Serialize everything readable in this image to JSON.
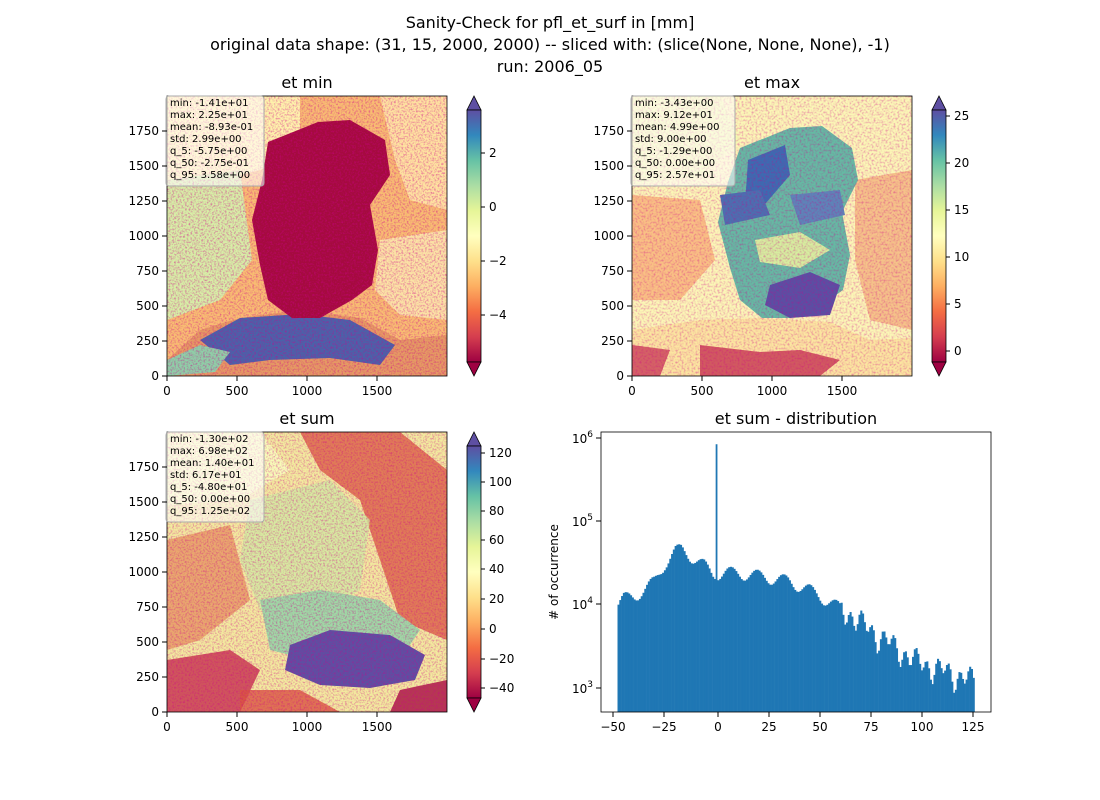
{
  "figure": {
    "title_lines": [
      "Sanity-Check for pfl_et_surf in [mm]",
      "original data shape: (31, 15, 2000, 2000) -- sliced with: (slice(None, None, None), -1)",
      "run: 2006_05"
    ]
  },
  "panels": [
    {
      "key": "etmin",
      "title": "et min",
      "stats": [
        "min: -1.41e+01",
        "max: 2.25e+01",
        "mean: -8.93e-01",
        "std: 2.99e+00",
        "q_5: -5.75e+00",
        "q_50: -2.75e-01",
        "q_95: 3.58e+00"
      ],
      "xticks": [
        "0",
        "500",
        "1000",
        "1500"
      ],
      "yticks": [
        "0",
        "250",
        "500",
        "750",
        "1000",
        "1250",
        "1500",
        "1750"
      ],
      "colorbar": {
        "ticks": [
          "2",
          "0",
          "−2",
          "−4"
        ],
        "min": -5.75,
        "max": 3.58
      }
    },
    {
      "key": "etmax",
      "title": "et max",
      "stats": [
        "min: -3.43e+00",
        "max: 9.12e+01",
        "mean: 4.99e+00",
        "std: 9.00e+00",
        "q_5: -1.29e+00",
        "q_50: 0.00e+00",
        "q_95: 2.57e+01"
      ],
      "xticks": [
        "0",
        "500",
        "1000",
        "1500"
      ],
      "yticks": [
        "0",
        "250",
        "500",
        "750",
        "1000",
        "1250",
        "1500",
        "1750"
      ],
      "colorbar": {
        "ticks": [
          "25",
          "20",
          "15",
          "10",
          "5",
          "0"
        ],
        "min": -1.29,
        "max": 25.7
      }
    },
    {
      "key": "etsum",
      "title": "et sum",
      "stats": [
        "min: -1.30e+02",
        "max: 6.98e+02",
        "mean: 1.40e+01",
        "std: 6.17e+01",
        "q_5: -4.80e+01",
        "q_50: 0.00e+00",
        "q_95: 1.25e+02"
      ],
      "xticks": [
        "0",
        "500",
        "1000",
        "1500"
      ],
      "yticks": [
        "0",
        "250",
        "500",
        "750",
        "1000",
        "1250",
        "1500",
        "1750"
      ],
      "colorbar": {
        "ticks": [
          "120",
          "100",
          "80",
          "60",
          "40",
          "20",
          "0",
          "−20",
          "−40"
        ],
        "min": -48,
        "max": 125
      }
    }
  ],
  "colormap": "Spectral",
  "colors": {
    "hist_bar": "#1f77b4"
  },
  "chart_data": {
    "type": "bar",
    "title": "et sum - distribution",
    "xlabel": "",
    "ylabel": "# of occurrence",
    "yscale": "log",
    "xlim": [
      -56,
      133
    ],
    "ylim": [
      450,
      1200000
    ],
    "xticks": [
      "−50",
      "−25",
      "0",
      "25",
      "50",
      "75",
      "100",
      "125"
    ],
    "yticks": [
      "10^3",
      "10^4",
      "10^5",
      "10^6"
    ],
    "bin_range": [
      -48,
      125
    ],
    "bin_count": 200,
    "spike": {
      "x": 0,
      "count": 850000
    },
    "profile_points": [
      [
        -48,
        9000
      ],
      [
        -45,
        11000
      ],
      [
        -40,
        12000
      ],
      [
        -35,
        14000
      ],
      [
        -30,
        18000
      ],
      [
        -25,
        30000
      ],
      [
        -20,
        42000
      ],
      [
        -17,
        44000
      ],
      [
        -12,
        36000
      ],
      [
        -6,
        28000
      ],
      [
        -2,
        22000
      ],
      [
        5,
        23000
      ],
      [
        15,
        22000
      ],
      [
        25,
        20000
      ],
      [
        35,
        18000
      ],
      [
        45,
        14000
      ],
      [
        55,
        10000
      ],
      [
        65,
        7000
      ],
      [
        75,
        4500
      ],
      [
        85,
        3000
      ],
      [
        95,
        2000
      ],
      [
        105,
        1600
      ],
      [
        115,
        1300
      ],
      [
        125,
        1100
      ]
    ]
  }
}
